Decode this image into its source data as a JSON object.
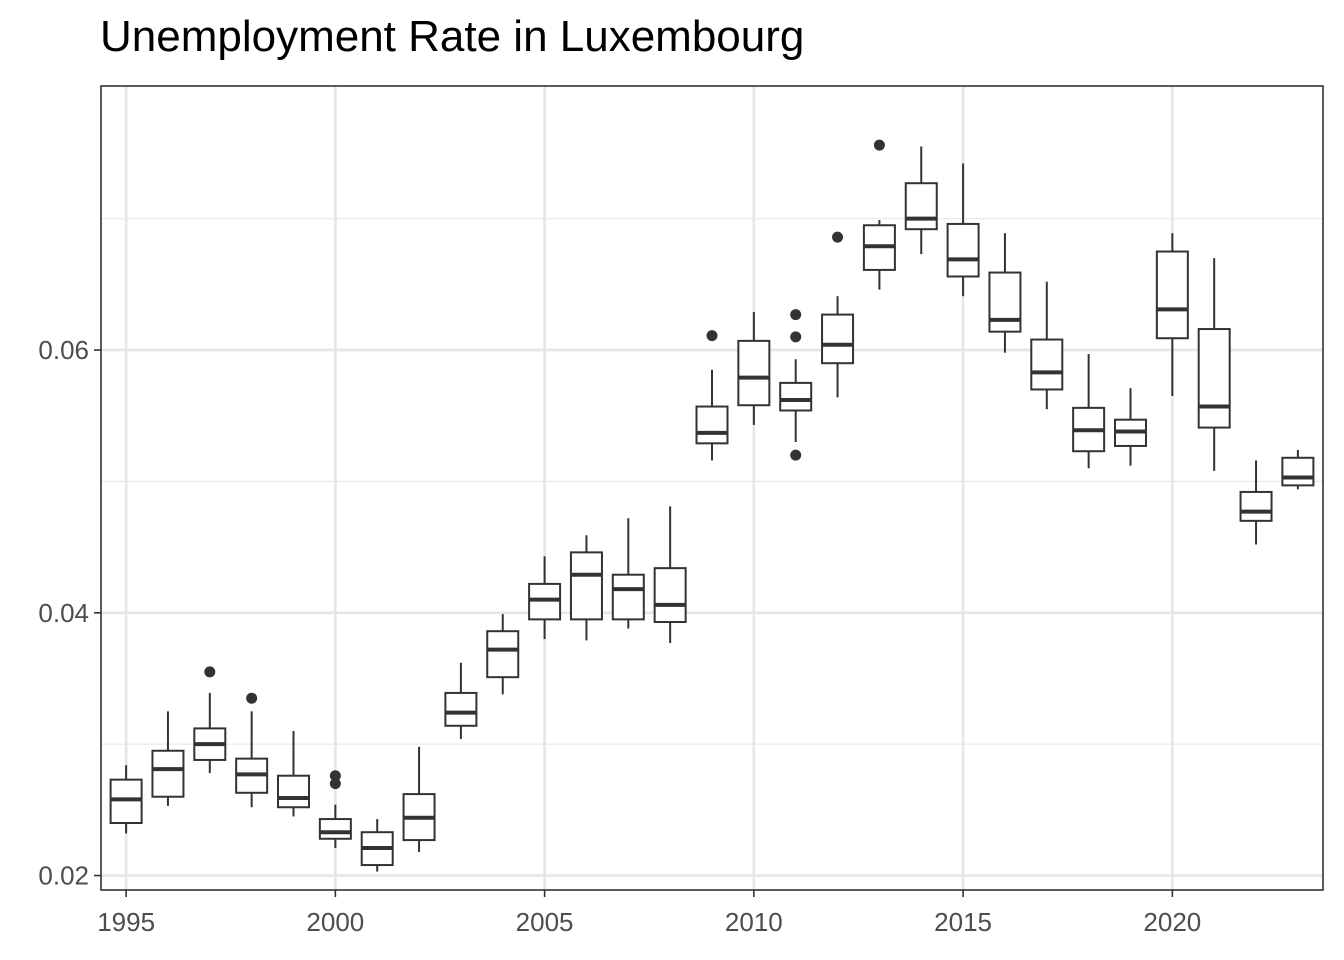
{
  "chart_data": {
    "type": "boxplot",
    "title": "Unemployment Rate in Luxembourg",
    "xlabel": "",
    "ylabel": "",
    "xlim": [
      1994.4,
      2023.6
    ],
    "ylim": [
      0.0189,
      0.0801
    ],
    "x_ticks": [
      1995,
      2000,
      2005,
      2010,
      2015,
      2020
    ],
    "x_tick_labels": [
      "1995",
      "2000",
      "2005",
      "2010",
      "2015",
      "2020"
    ],
    "y_ticks": [
      0.02,
      0.04,
      0.06
    ],
    "y_tick_labels": [
      "0.02",
      "0.04",
      "0.06"
    ],
    "grid": true,
    "boxes": [
      {
        "x": 1995,
        "min": 0.0232,
        "q1": 0.024,
        "median": 0.0258,
        "q3": 0.0273,
        "max": 0.0284,
        "outliers": []
      },
      {
        "x": 1996,
        "min": 0.0253,
        "q1": 0.026,
        "median": 0.0281,
        "q3": 0.0295,
        "max": 0.0325,
        "outliers": []
      },
      {
        "x": 1997,
        "min": 0.0278,
        "q1": 0.0288,
        "median": 0.03,
        "q3": 0.0312,
        "max": 0.0339,
        "outliers": [
          0.0355
        ]
      },
      {
        "x": 1998,
        "min": 0.0252,
        "q1": 0.0263,
        "median": 0.0277,
        "q3": 0.0289,
        "max": 0.0325,
        "outliers": [
          0.0335
        ]
      },
      {
        "x": 1999,
        "min": 0.0245,
        "q1": 0.0252,
        "median": 0.0259,
        "q3": 0.0276,
        "max": 0.031,
        "outliers": []
      },
      {
        "x": 2000,
        "min": 0.0221,
        "q1": 0.0228,
        "median": 0.0233,
        "q3": 0.0243,
        "max": 0.0254,
        "outliers": [
          0.027,
          0.0276
        ]
      },
      {
        "x": 2001,
        "min": 0.0203,
        "q1": 0.0208,
        "median": 0.0221,
        "q3": 0.0233,
        "max": 0.0243,
        "outliers": []
      },
      {
        "x": 2002,
        "min": 0.0218,
        "q1": 0.0227,
        "median": 0.0244,
        "q3": 0.0262,
        "max": 0.0298,
        "outliers": []
      },
      {
        "x": 2003,
        "min": 0.0304,
        "q1": 0.0314,
        "median": 0.0324,
        "q3": 0.0339,
        "max": 0.0362,
        "outliers": []
      },
      {
        "x": 2004,
        "min": 0.0338,
        "q1": 0.0351,
        "median": 0.0372,
        "q3": 0.0386,
        "max": 0.0399,
        "outliers": []
      },
      {
        "x": 2005,
        "min": 0.038,
        "q1": 0.0395,
        "median": 0.041,
        "q3": 0.0422,
        "max": 0.0443,
        "outliers": []
      },
      {
        "x": 2006,
        "min": 0.0379,
        "q1": 0.0395,
        "median": 0.0429,
        "q3": 0.0446,
        "max": 0.0459,
        "outliers": []
      },
      {
        "x": 2007,
        "min": 0.0388,
        "q1": 0.0395,
        "median": 0.0418,
        "q3": 0.0429,
        "max": 0.0472,
        "outliers": []
      },
      {
        "x": 2008,
        "min": 0.0377,
        "q1": 0.0393,
        "median": 0.0406,
        "q3": 0.0434,
        "max": 0.0481,
        "outliers": []
      },
      {
        "x": 2009,
        "min": 0.0516,
        "q1": 0.0529,
        "median": 0.0537,
        "q3": 0.0557,
        "max": 0.0585,
        "outliers": [
          0.0611
        ]
      },
      {
        "x": 2010,
        "min": 0.0543,
        "q1": 0.0558,
        "median": 0.0579,
        "q3": 0.0607,
        "max": 0.0629,
        "outliers": []
      },
      {
        "x": 2011,
        "min": 0.053,
        "q1": 0.0554,
        "median": 0.0562,
        "q3": 0.0575,
        "max": 0.0593,
        "outliers": [
          0.052,
          0.061,
          0.0627
        ]
      },
      {
        "x": 2012,
        "min": 0.0564,
        "q1": 0.059,
        "median": 0.0604,
        "q3": 0.0627,
        "max": 0.0641,
        "outliers": [
          0.0686
        ]
      },
      {
        "x": 2013,
        "min": 0.0646,
        "q1": 0.0661,
        "median": 0.0679,
        "q3": 0.0695,
        "max": 0.0699,
        "outliers": [
          0.0756
        ]
      },
      {
        "x": 2014,
        "min": 0.0673,
        "q1": 0.0692,
        "median": 0.07,
        "q3": 0.0727,
        "max": 0.0755,
        "outliers": []
      },
      {
        "x": 2015,
        "min": 0.0641,
        "q1": 0.0656,
        "median": 0.0669,
        "q3": 0.0696,
        "max": 0.0742,
        "outliers": []
      },
      {
        "x": 2016,
        "min": 0.0598,
        "q1": 0.0614,
        "median": 0.0623,
        "q3": 0.0659,
        "max": 0.0689,
        "outliers": []
      },
      {
        "x": 2017,
        "min": 0.0555,
        "q1": 0.057,
        "median": 0.0583,
        "q3": 0.0608,
        "max": 0.0652,
        "outliers": []
      },
      {
        "x": 2018,
        "min": 0.051,
        "q1": 0.0523,
        "median": 0.0539,
        "q3": 0.0556,
        "max": 0.0597,
        "outliers": []
      },
      {
        "x": 2019,
        "min": 0.0512,
        "q1": 0.0527,
        "median": 0.0538,
        "q3": 0.0547,
        "max": 0.0571,
        "outliers": []
      },
      {
        "x": 2020,
        "min": 0.0565,
        "q1": 0.0609,
        "median": 0.0631,
        "q3": 0.0675,
        "max": 0.0689,
        "outliers": []
      },
      {
        "x": 2021,
        "min": 0.0508,
        "q1": 0.0541,
        "median": 0.0557,
        "q3": 0.0616,
        "max": 0.067,
        "outliers": []
      },
      {
        "x": 2022,
        "min": 0.0452,
        "q1": 0.047,
        "median": 0.0477,
        "q3": 0.0492,
        "max": 0.0516,
        "outliers": []
      },
      {
        "x": 2023,
        "min": 0.0494,
        "q1": 0.0497,
        "median": 0.0503,
        "q3": 0.0518,
        "max": 0.0524,
        "outliers": []
      }
    ]
  }
}
